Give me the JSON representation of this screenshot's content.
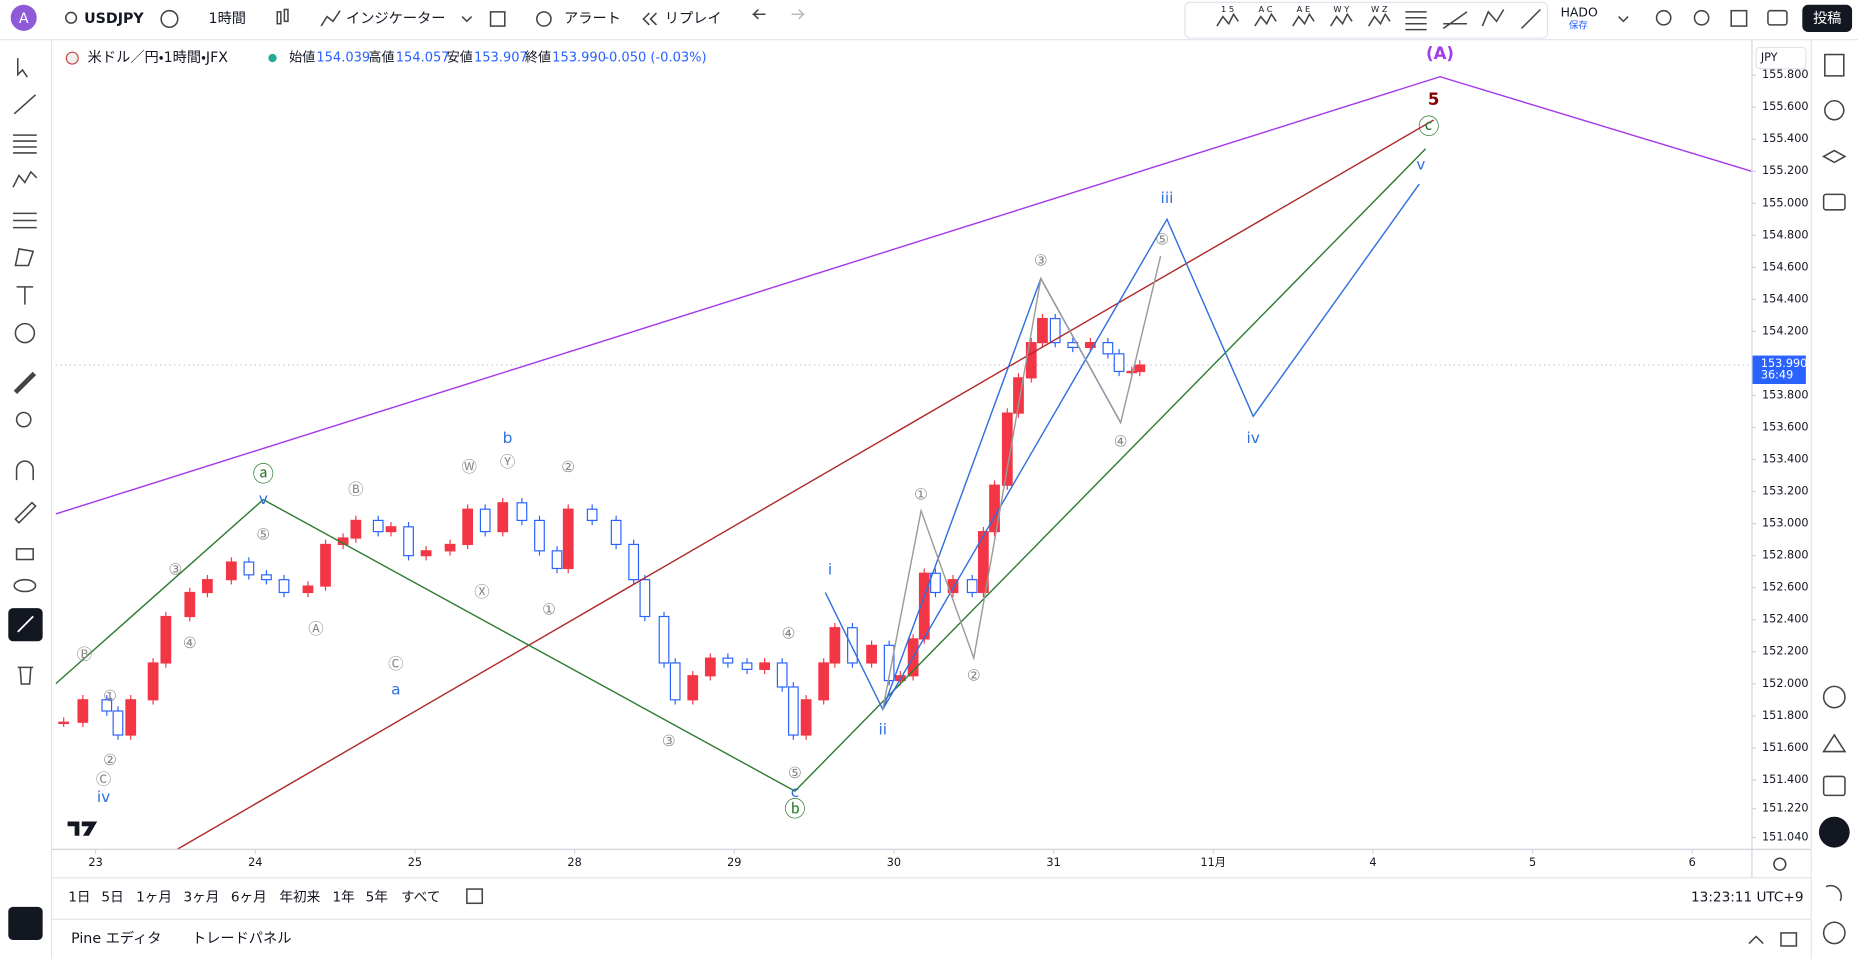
{
  "toolbar": {
    "avatar": "A",
    "symbol": "USDJPY",
    "interval": "1時間",
    "indicators": "インジケーター",
    "alert": "アラート",
    "replay": "リプレイ",
    "pattern_tools": [
      "1 5",
      "A C",
      "A E",
      "W Y",
      "W Z"
    ],
    "layout_name": "HADO",
    "save": "保存",
    "publish": "投稿"
  },
  "legend": {
    "instrument": "米ドル／円・1時間・JFX",
    "open_label": "始値",
    "open": 154.039,
    "high_label": "高値",
    "high": 154.057,
    "low_label": "安値",
    "low": 153.907,
    "close_label": "終値",
    "close": 153.99,
    "close_text": "153.990",
    "change": "-0.050 (-0.03%)"
  },
  "chart_data": {
    "type": "candlestick",
    "currency": "JPY",
    "up_color": "#f23645",
    "down_color": "#2962ff",
    "xlim": [
      -0.25,
      10.37
    ],
    "ylim": [
      150.97,
      156.01
    ],
    "xticks": [
      {
        "value": 0,
        "label": "23"
      },
      {
        "value": 1,
        "label": "24"
      },
      {
        "value": 2,
        "label": "25"
      },
      {
        "value": 3,
        "label": "28"
      },
      {
        "value": 4,
        "label": "29"
      },
      {
        "value": 5,
        "label": "30"
      },
      {
        "value": 6,
        "label": "31"
      },
      {
        "value": 7,
        "label": "11月"
      },
      {
        "value": 8,
        "label": "4"
      },
      {
        "value": 9,
        "label": "5"
      },
      {
        "value": 10,
        "label": "6"
      }
    ],
    "yticks": [
      {
        "value": 155.8,
        "label": "155.800"
      },
      {
        "value": 155.6,
        "label": "155.600"
      },
      {
        "value": 155.4,
        "label": "155.400"
      },
      {
        "value": 155.2,
        "label": "155.200"
      },
      {
        "value": 155.0,
        "label": "155.000"
      },
      {
        "value": 154.8,
        "label": "154.800"
      },
      {
        "value": 154.6,
        "label": "154.600"
      },
      {
        "value": 154.4,
        "label": "154.400"
      },
      {
        "value": 154.2,
        "label": "154.200"
      },
      {
        "value": 153.8,
        "label": "153.800"
      },
      {
        "value": 153.6,
        "label": "153.600"
      },
      {
        "value": 153.4,
        "label": "153.400"
      },
      {
        "value": 153.2,
        "label": "153.200"
      },
      {
        "value": 153.0,
        "label": "153.000"
      },
      {
        "value": 152.8,
        "label": "152.800"
      },
      {
        "value": 152.6,
        "label": "152.600"
      },
      {
        "value": 152.4,
        "label": "152.400"
      },
      {
        "value": 152.2,
        "label": "152.200"
      },
      {
        "value": 152.0,
        "label": "152.000"
      },
      {
        "value": 151.8,
        "label": "151.800"
      },
      {
        "value": 151.6,
        "label": "151.600"
      },
      {
        "value": 151.4,
        "label": "151.400"
      },
      {
        "value": 151.22,
        "label": "151.220"
      },
      {
        "value": 151.04,
        "label": "151.040"
      }
    ],
    "candles": {
      "x": [
        -0.2,
        -0.08,
        0.07,
        0.14,
        0.22,
        0.36,
        0.44,
        0.59,
        0.7,
        0.85,
        0.96,
        1.07,
        1.18,
        1.33,
        1.44,
        1.55,
        1.63,
        1.77,
        1.85,
        1.96,
        2.07,
        2.22,
        2.33,
        2.44,
        2.55,
        2.67,
        2.78,
        2.89,
        2.96,
        3.11,
        3.26,
        3.37,
        3.44,
        3.56,
        3.63,
        3.74,
        3.85,
        3.96,
        4.08,
        4.19,
        4.3,
        4.37,
        4.45,
        4.56,
        4.63,
        4.74,
        4.86,
        4.97,
        5.04,
        5.12,
        5.19,
        5.26,
        5.37,
        5.49,
        5.56,
        5.63,
        5.71,
        5.78,
        5.86,
        5.93,
        6.01,
        6.12,
        6.23,
        6.34,
        6.41,
        6.49,
        6.54
      ],
      "close": [
        151.76,
        151.9,
        151.83,
        151.68,
        151.9,
        152.13,
        152.42,
        152.57,
        152.65,
        152.76,
        152.68,
        152.65,
        152.57,
        152.61,
        152.87,
        152.91,
        153.02,
        152.95,
        152.98,
        152.8,
        152.83,
        152.87,
        153.09,
        152.95,
        153.13,
        153.02,
        152.83,
        152.72,
        153.09,
        153.02,
        152.87,
        152.65,
        152.42,
        152.13,
        151.9,
        152.05,
        152.16,
        152.13,
        152.09,
        152.13,
        151.98,
        151.68,
        151.9,
        152.13,
        152.35,
        152.13,
        152.24,
        152.02,
        152.05,
        152.28,
        152.69,
        152.57,
        152.65,
        152.57,
        152.95,
        153.24,
        153.69,
        153.91,
        154.13,
        154.28,
        154.13,
        154.1,
        154.13,
        154.06,
        153.95,
        153.95,
        153.99
      ]
    },
    "last_price": {
      "value": 153.99,
      "label": "153.990",
      "countdown": "36:49"
    },
    "lines": [
      {
        "color": "#a33be8",
        "x": [
          -0.25,
          8.42,
          10.37
        ],
        "y": [
          153.06,
          155.79,
          155.2
        ]
      },
      {
        "color": "#b02a2a",
        "x": [
          0.5,
          8.38
        ],
        "y": [
          150.96,
          155.52
        ]
      },
      {
        "color": "#2e7d32",
        "x": [
          -0.25,
          1.05,
          4.38,
          8.33
        ],
        "y": [
          152.0,
          153.15,
          151.33,
          155.34
        ]
      },
      {
        "color": "#2f6fdf",
        "x": [
          4.57,
          4.93,
          6.71,
          7.25,
          8.29
        ],
        "y": [
          152.57,
          151.84,
          154.9,
          153.67,
          155.12
        ]
      },
      {
        "color": "#2f6fdf",
        "x": [
          4.93,
          5.92,
          6.42
        ],
        "y": [
          151.84,
          154.53,
          153.63
        ]
      },
      {
        "color": "#9a9a9a",
        "x": [
          4.93,
          5.17,
          5.5,
          5.92,
          6.42,
          6.67
        ],
        "y": [
          151.84,
          153.08,
          152.16,
          154.53,
          153.63,
          154.67
        ]
      }
    ],
    "annotations": [
      {
        "text": "(A)",
        "x": 8.42,
        "y": 155.93,
        "color": "#a33be8"
      },
      {
        "text": "5",
        "x": 8.38,
        "y": 155.64,
        "color": "#8b0000"
      },
      {
        "text": "ⓒ",
        "x": 8.35,
        "y": 155.47,
        "color": "#2e7d32"
      },
      {
        "text": "v",
        "x": 8.3,
        "y": 155.24,
        "color": "#2f6fdf"
      },
      {
        "text": "iii",
        "x": 6.71,
        "y": 155.03,
        "color": "#2f6fdf"
      },
      {
        "text": "⑤",
        "x": 6.68,
        "y": 154.77,
        "color": "#888888"
      },
      {
        "text": "③",
        "x": 5.92,
        "y": 154.64,
        "color": "#888888"
      },
      {
        "text": "④",
        "x": 6.42,
        "y": 153.51,
        "color": "#888888"
      },
      {
        "text": "iv",
        "x": 7.25,
        "y": 153.53,
        "color": "#2f6fdf"
      },
      {
        "text": "①",
        "x": 5.17,
        "y": 153.18,
        "color": "#888888"
      },
      {
        "text": "②",
        "x": 5.5,
        "y": 152.05,
        "color": "#888888"
      },
      {
        "text": "i",
        "x": 4.6,
        "y": 152.71,
        "color": "#2f6fdf"
      },
      {
        "text": "ii",
        "x": 4.93,
        "y": 151.71,
        "color": "#2f6fdf"
      },
      {
        "text": "④",
        "x": 4.34,
        "y": 152.31,
        "color": "#888888"
      },
      {
        "text": "⑤",
        "x": 4.38,
        "y": 151.44,
        "color": "#888888"
      },
      {
        "text": "c",
        "x": 4.38,
        "y": 151.32,
        "color": "#2f6fdf"
      },
      {
        "text": "ⓑ",
        "x": 4.38,
        "y": 151.21,
        "color": "#2e7d32"
      },
      {
        "text": "③",
        "x": 3.59,
        "y": 151.64,
        "color": "#888888"
      },
      {
        "text": "①",
        "x": 2.84,
        "y": 152.46,
        "color": "#888888"
      },
      {
        "text": "②",
        "x": 2.96,
        "y": 153.35,
        "color": "#888888"
      },
      {
        "text": "Ⓨ",
        "x": 2.58,
        "y": 153.38,
        "color": "#888888"
      },
      {
        "text": "b",
        "x": 2.58,
        "y": 153.53,
        "color": "#2f6fdf"
      },
      {
        "text": "Ⓦ",
        "x": 2.34,
        "y": 153.35,
        "color": "#888888"
      },
      {
        "text": "Ⓧ",
        "x": 2.42,
        "y": 152.57,
        "color": "#888888"
      },
      {
        "text": "Ⓑ",
        "x": 1.63,
        "y": 153.21,
        "color": "#888888"
      },
      {
        "text": "Ⓐ",
        "x": 1.38,
        "y": 152.34,
        "color": "#888888"
      },
      {
        "text": "Ⓒ",
        "x": 1.88,
        "y": 152.12,
        "color": "#888888"
      },
      {
        "text": "a",
        "x": 1.88,
        "y": 151.96,
        "color": "#2f6fdf"
      },
      {
        "text": "ⓐ",
        "x": 1.05,
        "y": 153.3,
        "color": "#2e7d32"
      },
      {
        "text": "v",
        "x": 1.05,
        "y": 153.15,
        "color": "#2f6fdf"
      },
      {
        "text": "⑤",
        "x": 1.05,
        "y": 152.93,
        "color": "#888888"
      },
      {
        "text": "③",
        "x": 0.5,
        "y": 152.71,
        "color": "#888888"
      },
      {
        "text": "④",
        "x": 0.59,
        "y": 152.25,
        "color": "#888888"
      },
      {
        "text": "Ⓑ",
        "x": -0.07,
        "y": 152.18,
        "color": "#888888"
      },
      {
        "text": "①",
        "x": 0.09,
        "y": 151.92,
        "color": "#888888"
      },
      {
        "text": "②",
        "x": 0.09,
        "y": 151.52,
        "color": "#888888"
      },
      {
        "text": "Ⓒ",
        "x": 0.05,
        "y": 151.4,
        "color": "#888888"
      },
      {
        "text": "iv",
        "x": 0.05,
        "y": 151.29,
        "color": "#2f6fdf"
      }
    ]
  },
  "range_bar": {
    "ranges": [
      "1日",
      "5日",
      "1ヶ月",
      "3ヶ月",
      "6ヶ月",
      "年初来",
      "1年",
      "5年",
      "すべて"
    ],
    "clock": "13:23:11 UTC+9"
  },
  "bottom_panel": {
    "tabs": [
      "Pine エディタ",
      "トレードパネル"
    ]
  }
}
